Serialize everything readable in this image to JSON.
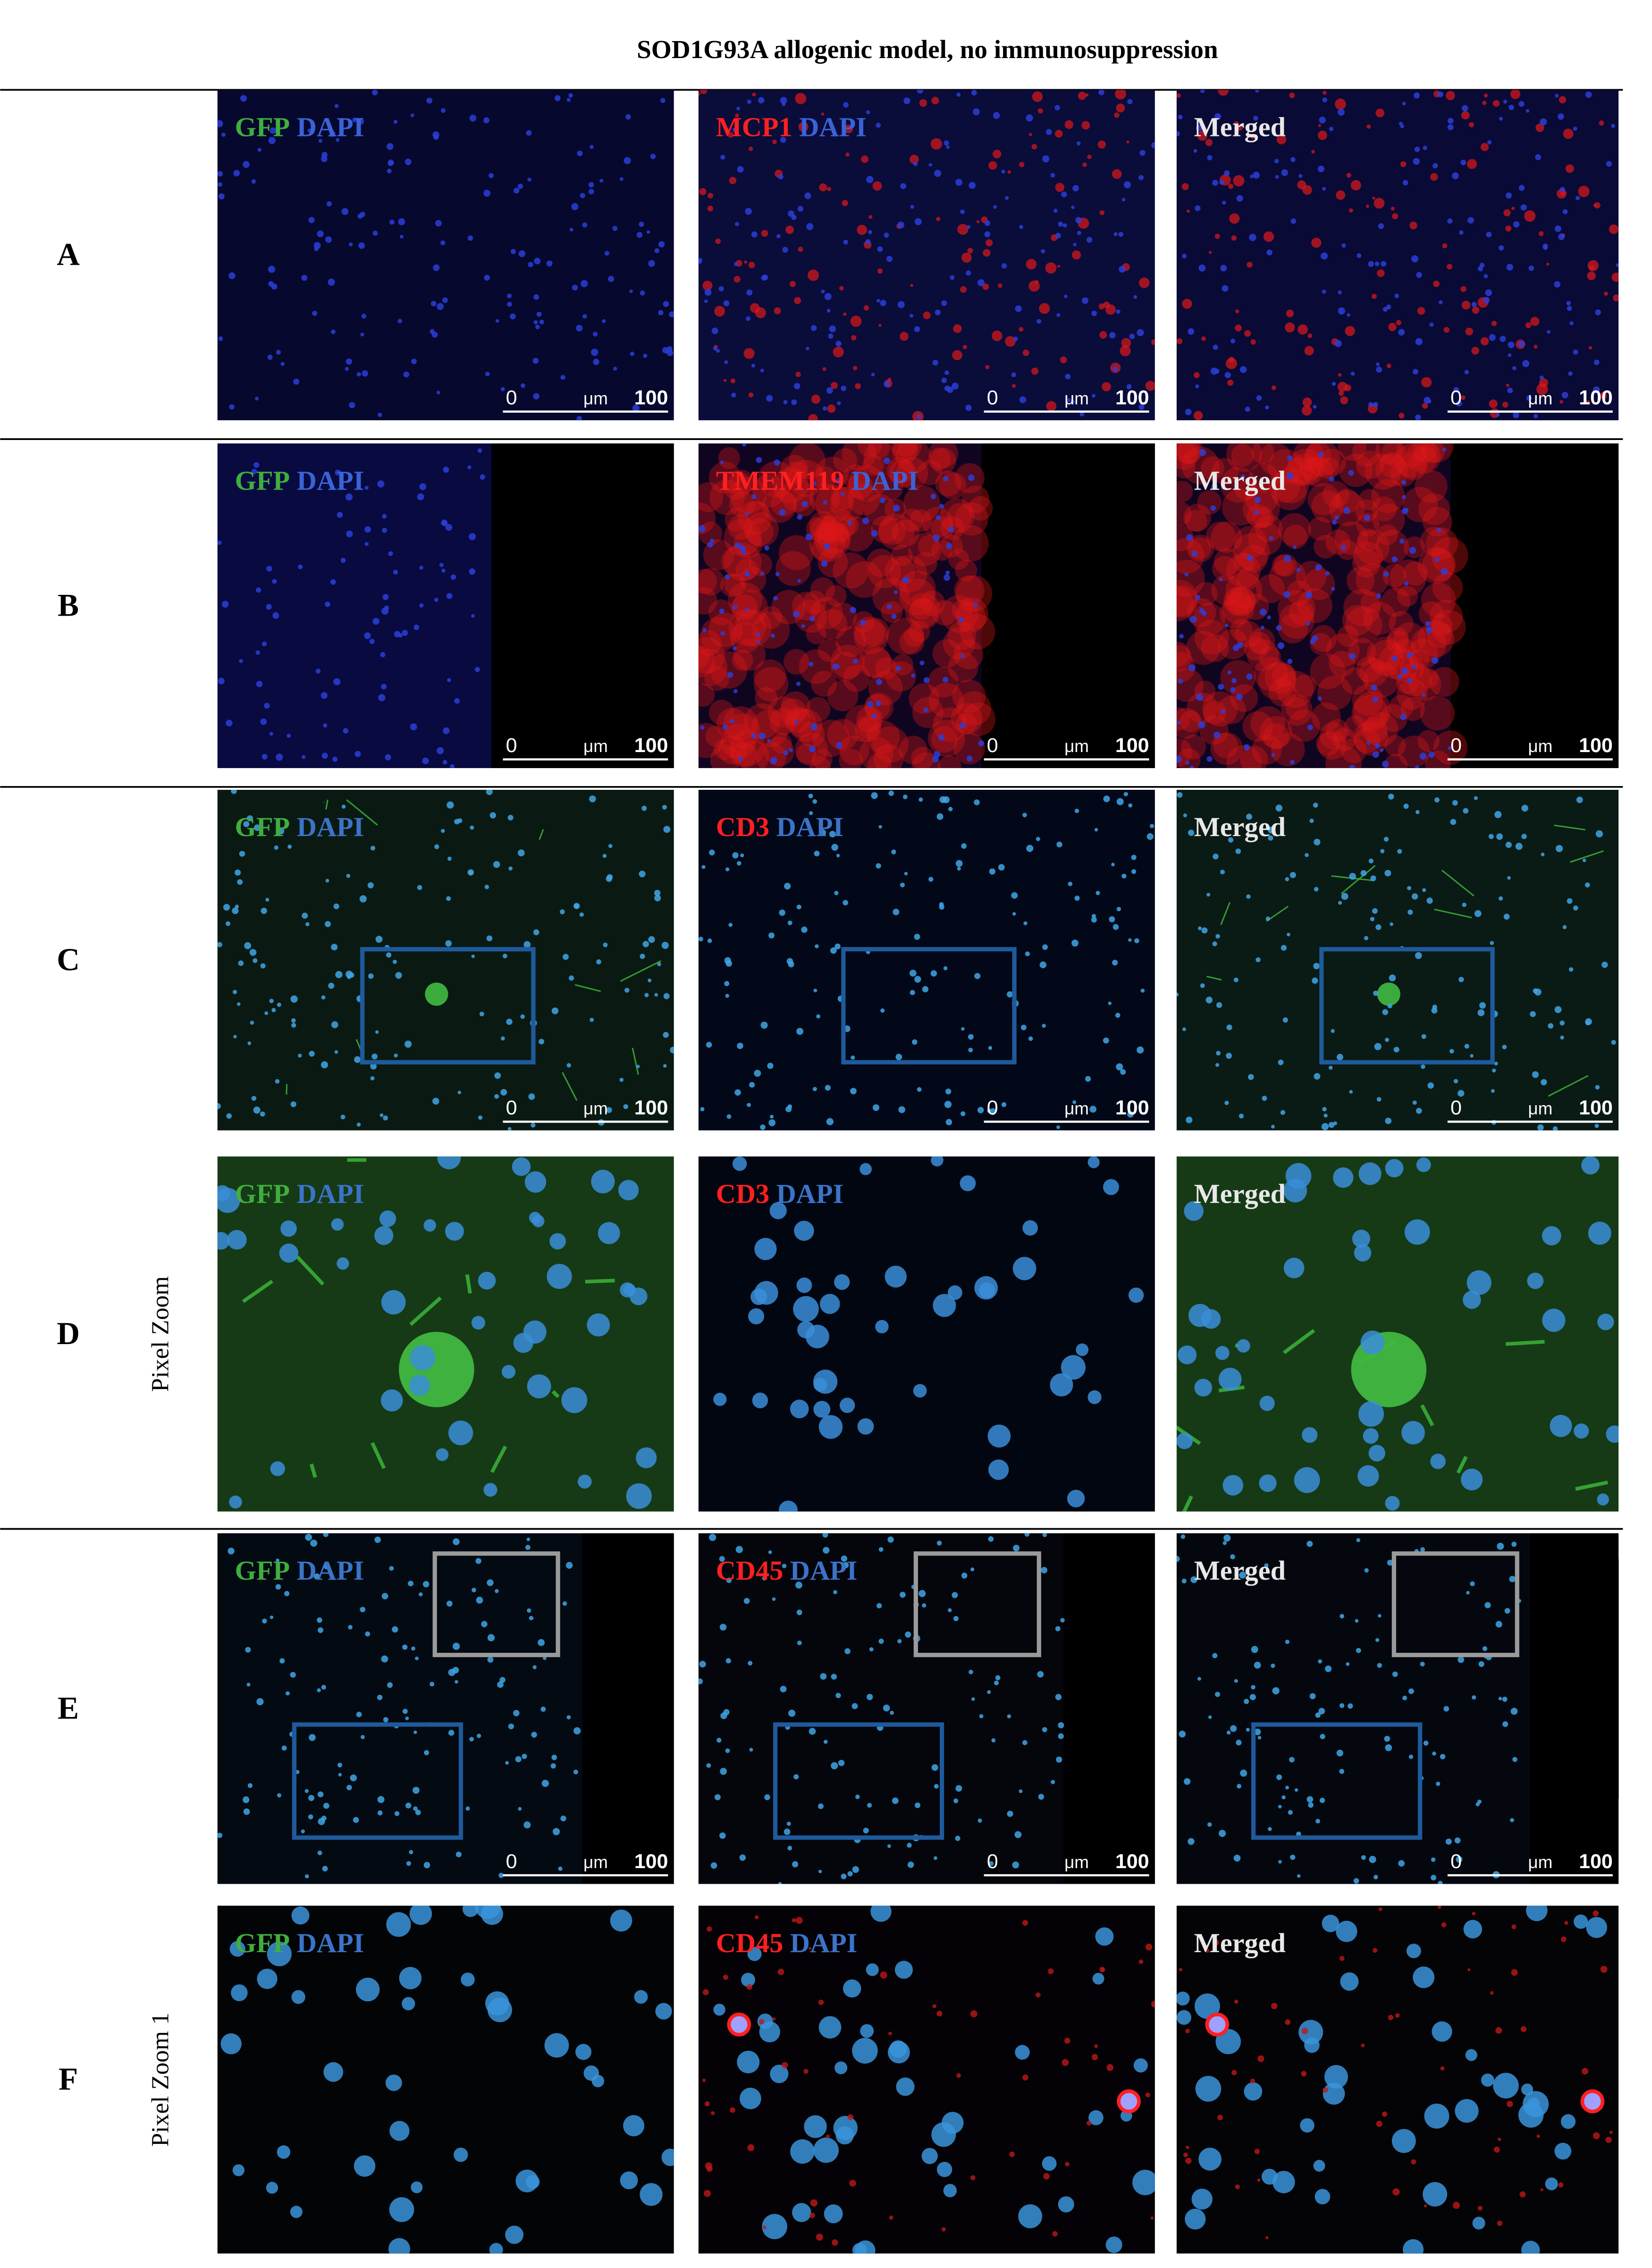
{
  "title": "SOD1G93A allogenic model, no immunosuppression",
  "rows": [
    {
      "label": "A",
      "panels": [
        {
          "label": [
            {
              "text": "GFP",
              "color": "#3fae3f"
            },
            {
              "text": "DAPI",
              "color": "#3b63d8"
            }
          ],
          "scale_bar": {
            "start": "0",
            "unit": "μm",
            "end": "100"
          }
        },
        {
          "label": [
            {
              "text": "MCP1",
              "color": "#ff2020"
            },
            {
              "text": "DAPI",
              "color": "#3b63d8"
            }
          ],
          "scale_bar": {
            "start": "0",
            "unit": "μm",
            "end": "100"
          }
        },
        {
          "label": [
            {
              "text": "Merged",
              "color": "#e8e8e8"
            }
          ],
          "scale_bar": {
            "start": "0",
            "unit": "μm",
            "end": "100"
          }
        }
      ]
    },
    {
      "label": "B",
      "panels": [
        {
          "label": [
            {
              "text": "GFP",
              "color": "#3fae3f"
            },
            {
              "text": "DAPI",
              "color": "#3b63d8"
            }
          ],
          "scale_bar": {
            "start": "0",
            "unit": "μm",
            "end": "100"
          }
        },
        {
          "label": [
            {
              "text": "TMEM119",
              "color": "#ff2020"
            },
            {
              "text": "DAPI",
              "color": "#3b63d8"
            }
          ],
          "scale_bar": {
            "start": "0",
            "unit": "μm",
            "end": "100"
          }
        },
        {
          "label": [
            {
              "text": "Merged",
              "color": "#e8e8e8"
            }
          ],
          "scale_bar": {
            "start": "0",
            "unit": "μm",
            "end": "100"
          }
        }
      ]
    },
    {
      "label": "C",
      "panels": [
        {
          "label": [
            {
              "text": "GFP",
              "color": "#3fae3f"
            },
            {
              "text": "DAPI",
              "color": "#3b73c8"
            }
          ],
          "scale_bar": {
            "start": "0",
            "unit": "μm",
            "end": "100"
          }
        },
        {
          "label": [
            {
              "text": "CD3",
              "color": "#ff2020"
            },
            {
              "text": "DAPI",
              "color": "#3b73c8"
            }
          ],
          "scale_bar": {
            "start": "0",
            "unit": "μm",
            "end": "100"
          }
        },
        {
          "label": [
            {
              "text": "Merged",
              "color": "#e8e8e8"
            }
          ],
          "scale_bar": {
            "start": "0",
            "unit": "μm",
            "end": "100"
          }
        }
      ]
    },
    {
      "label": "D",
      "side_label": "Pixel Zoom",
      "panels": [
        {
          "label": [
            {
              "text": "GFP",
              "color": "#3fae3f"
            },
            {
              "text": "DAPI",
              "color": "#3b73c8"
            }
          ]
        },
        {
          "label": [
            {
              "text": "CD3",
              "color": "#ff2020"
            },
            {
              "text": "DAPI",
              "color": "#3b73c8"
            }
          ]
        },
        {
          "label": [
            {
              "text": "Merged",
              "color": "#e8e8e8"
            }
          ]
        }
      ]
    },
    {
      "label": "E",
      "panels": [
        {
          "label": [
            {
              "text": "GFP",
              "color": "#3fae3f"
            },
            {
              "text": "DAPI",
              "color": "#3b73c8"
            }
          ],
          "scale_bar": {
            "start": "0",
            "unit": "μm",
            "end": "100"
          }
        },
        {
          "label": [
            {
              "text": "CD45",
              "color": "#ff2020"
            },
            {
              "text": "DAPI",
              "color": "#3b73c8"
            }
          ],
          "scale_bar": {
            "start": "0",
            "unit": "μm",
            "end": "100"
          }
        },
        {
          "label": [
            {
              "text": "Merged",
              "color": "#e8e8e8"
            }
          ],
          "scale_bar": {
            "start": "0",
            "unit": "μm",
            "end": "100"
          }
        }
      ]
    },
    {
      "label": "F",
      "side_label": "Pixel Zoom 1",
      "panels": [
        {
          "label": [
            {
              "text": "GFP",
              "color": "#3fae3f"
            },
            {
              "text": "DAPI",
              "color": "#3b73c8"
            }
          ]
        },
        {
          "label": [
            {
              "text": "CD45",
              "color": "#ff2020"
            },
            {
              "text": "DAPI",
              "color": "#3b73c8"
            }
          ]
        },
        {
          "label": [
            {
              "text": "Merged",
              "color": "#e8e8e8"
            }
          ]
        }
      ]
    }
  ]
}
